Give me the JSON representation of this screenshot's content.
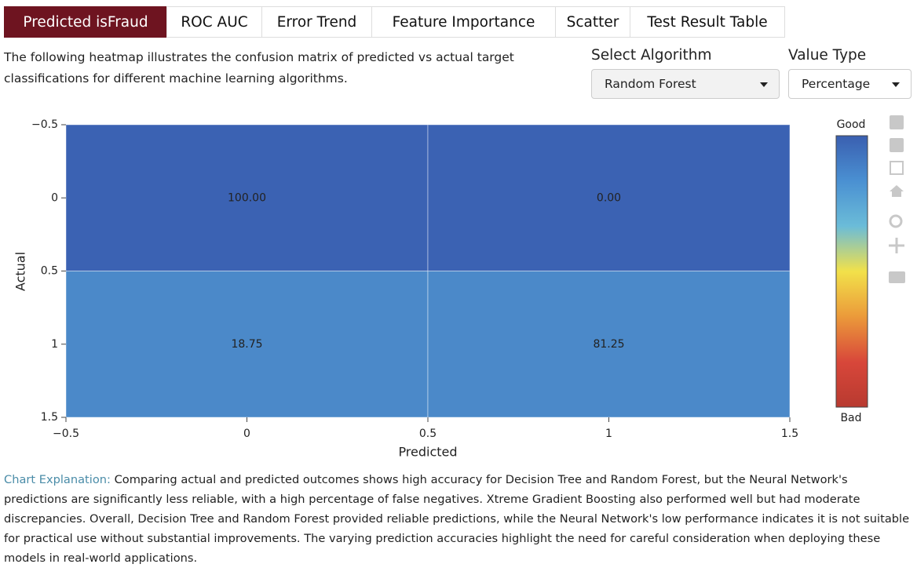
{
  "tabs": [
    "Predicted isFraud",
    "ROC AUC",
    "Error Trend",
    "Feature Importance",
    "Scatter",
    "Test Result Table"
  ],
  "description": "The following heatmap illustrates the confusion matrix of predicted vs actual target classifications for different machine learning algorithms.",
  "controls": [
    {
      "label": "Select Algorithm",
      "value": "Random Forest"
    },
    {
      "label": "Value Type",
      "value": "Percentage"
    }
  ],
  "chart_data": {
    "type": "heatmap",
    "x_label": "Predicted",
    "y_label": "Actual",
    "x": [
      0,
      1
    ],
    "y": [
      0,
      1
    ],
    "values": [
      [
        100,
        0
      ],
      [
        18.75,
        81.25
      ]
    ],
    "value_labels": [
      [
        "100.00",
        "0.00"
      ],
      [
        "18.75",
        "81.25"
      ]
    ],
    "colors": [
      [
        "#3b62b3",
        "#3b62b3"
      ],
      [
        "#4b89c9",
        "#4b89c9"
      ]
    ],
    "xlim": [
      -0.5,
      1.5
    ],
    "xticks": [
      {
        "value": -0.5,
        "label": "−0.5"
      },
      0,
      0.5,
      1,
      1.5
    ],
    "ylim": [
      1.5,
      -0.5
    ],
    "yticks": [
      {
        "value": -0.5,
        "label": "−0.5"
      },
      0,
      0.5,
      1,
      1.5
    ],
    "colorbar": {
      "labels": [
        "Good",
        "Bad"
      ],
      "colors": [
        "#3a5fb0",
        "#4a90d2",
        "#6bbcd8",
        "#f2e14a",
        "#eb9a3a",
        "#d8473a",
        "#b83a30"
      ]
    }
  },
  "explanation": {
    "label": "Chart Explanation:",
    "text": "Comparing actual and predicted outcomes shows high accuracy for Decision Tree and Random Forest, but the Neural Network's predictions are significantly less reliable, with a high percentage of false negatives. Xtreme Gradient Boosting also performed well but had moderate discrepancies. Overall, Decision Tree and Random Forest provided reliable predictions, while the Neural Network's low performance indicates it is not suitable for practical use without substantial improvements. The varying prediction accuracies highlight the need for careful consideration when deploying these models in real-world applications."
  }
}
